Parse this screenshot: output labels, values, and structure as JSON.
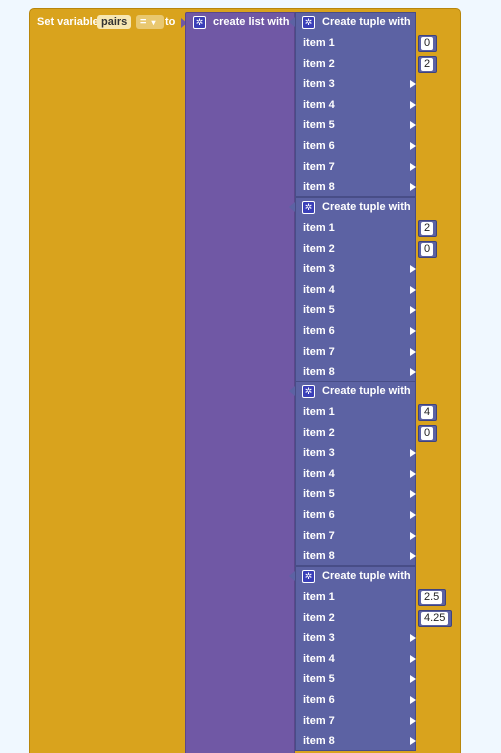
{
  "set_block": {
    "prefix": "Set variable",
    "variable": "pairs",
    "operator": "=",
    "dropdown_arrow": "▾",
    "to_label": "to"
  },
  "list_block": {
    "label": "create list with",
    "icon": "gear-icon"
  },
  "tuples": [
    {
      "title": "Create tuple with",
      "item_labels": [
        "item 1",
        "item 2",
        "item 3",
        "item 4",
        "item 5",
        "item 6",
        "item 7",
        "item 8"
      ],
      "values": [
        "0",
        "2"
      ]
    },
    {
      "title": "Create tuple with",
      "item_labels": [
        "item 1",
        "item 2",
        "item 3",
        "item 4",
        "item 5",
        "item 6",
        "item 7",
        "item 8"
      ],
      "values": [
        "2",
        "0"
      ]
    },
    {
      "title": "Create tuple with",
      "item_labels": [
        "item 1",
        "item 2",
        "item 3",
        "item 4",
        "item 5",
        "item 6",
        "item 7",
        "item 8"
      ],
      "values": [
        "4",
        "0"
      ]
    },
    {
      "title": "Create tuple with",
      "item_labels": [
        "item 1",
        "item 2",
        "item 3",
        "item 4",
        "item 5",
        "item 6",
        "item 7",
        "item 8"
      ],
      "values": [
        "2.5",
        "4.25"
      ]
    }
  ],
  "colors": {
    "set_block": "#d9a31d",
    "list_block": "#7058a5",
    "tuple_block": "#5c62a3",
    "workspace": "#f0f8ff"
  }
}
